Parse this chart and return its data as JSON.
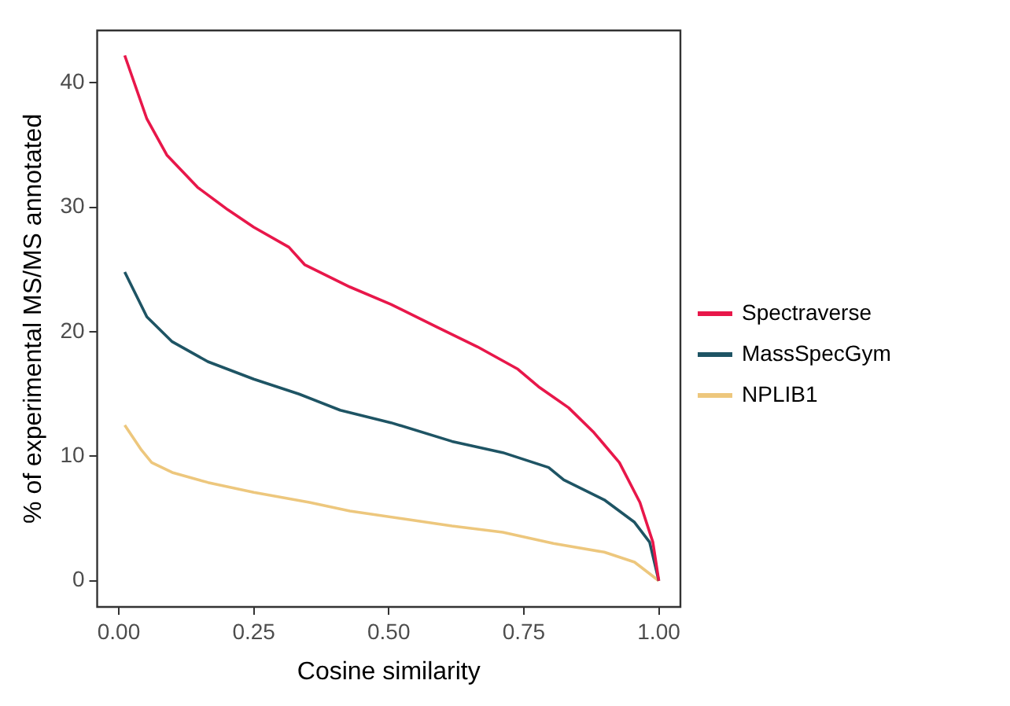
{
  "chart_data": {
    "type": "line",
    "xlabel": "Cosine similarity",
    "ylabel": "% of experimental MS/MS annotated",
    "xlim": [
      -0.04,
      1.04
    ],
    "xticks": [
      {
        "value": 0,
        "label": "0.00"
      },
      {
        "value": 0.25,
        "label": "0.25"
      },
      {
        "value": 0.5,
        "label": "0.50"
      },
      {
        "value": 0.75,
        "label": "0.75"
      },
      {
        "value": 1,
        "label": "1.00"
      }
    ],
    "ylim": [
      -2.1,
      44.2
    ],
    "yticks": [
      0,
      10,
      20,
      30,
      40
    ],
    "legend": "right",
    "marker": "none",
    "line_style": "solid",
    "series": [
      {
        "name": "Spectraverse",
        "color": "#e8174a",
        "x": [
          0.011,
          0.052,
          0.089,
          0.146,
          0.202,
          0.25,
          0.315,
          0.344,
          0.428,
          0.504,
          0.588,
          0.664,
          0.739,
          0.777,
          0.833,
          0.88,
          0.927,
          0.965,
          0.989,
          1.0
        ],
        "values": [
          42.2,
          37.1,
          34.2,
          31.6,
          29.8,
          28.4,
          26.8,
          25.4,
          23.6,
          22.2,
          20.4,
          18.8,
          17.0,
          15.6,
          13.9,
          11.9,
          9.5,
          6.3,
          3.1,
          0
        ]
      },
      {
        "name": "MassSpecGym",
        "color": "#1e5464",
        "x": [
          0.011,
          0.052,
          0.099,
          0.165,
          0.25,
          0.334,
          0.41,
          0.504,
          0.617,
          0.711,
          0.796,
          0.824,
          0.899,
          0.955,
          0.983,
          1.0
        ],
        "values": [
          24.8,
          21.2,
          19.2,
          17.6,
          16.2,
          15.0,
          13.7,
          12.7,
          11.2,
          10.3,
          9.1,
          8.1,
          6.5,
          4.7,
          3.1,
          0
        ]
      },
      {
        "name": "NPLIB1",
        "color": "#edc77d",
        "x": [
          0.011,
          0.042,
          0.061,
          0.099,
          0.165,
          0.25,
          0.353,
          0.428,
          0.523,
          0.617,
          0.711,
          0.805,
          0.899,
          0.955,
          1.0
        ],
        "values": [
          12.5,
          10.5,
          9.5,
          8.7,
          7.9,
          7.1,
          6.3,
          5.6,
          5.0,
          4.4,
          3.9,
          3.0,
          2.3,
          1.5,
          0
        ]
      }
    ]
  }
}
